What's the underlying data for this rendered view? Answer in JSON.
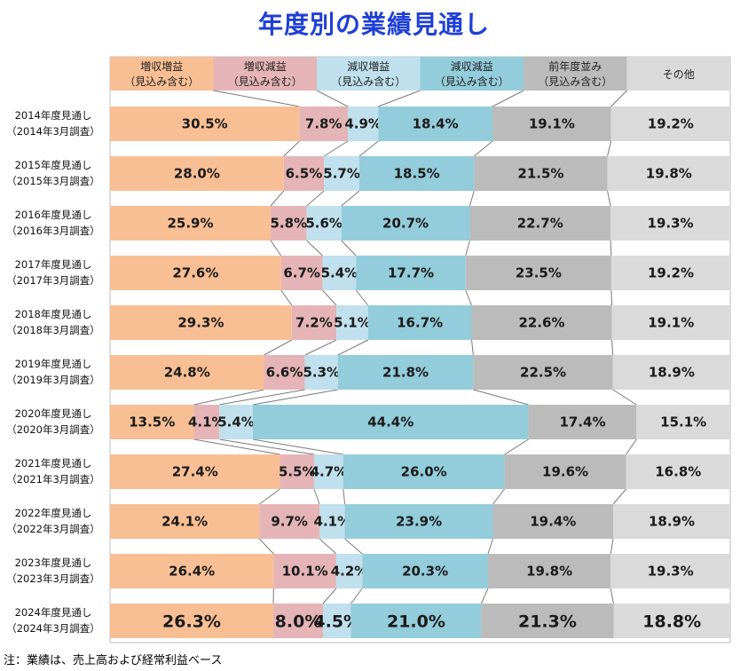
{
  "page": {
    "title": "年度別の業績見通し",
    "note": "注：業績は、売上高および経常利益ベース"
  },
  "colors": {
    "title": "#1f3fd6",
    "categories": [
      "#f9bf94",
      "#e5b4b6",
      "#bfe0ec",
      "#93ccdb",
      "#bbbbbb",
      "#dadada"
    ],
    "header_bg": [
      "#f9bf94",
      "#e5b4b6",
      "#bfe0ec",
      "#93ccdb",
      "#bbbbbb",
      "#dadada"
    ]
  },
  "chart_data": {
    "type": "bar",
    "stacked": true,
    "orientation": "horizontal",
    "title": "年度別の業績見通し",
    "legend_placement": "top",
    "categories": [
      {
        "line1": "2014年度見通し",
        "line2": "（2014年3月調査）"
      },
      {
        "line1": "2015年度見通し",
        "line2": "（2015年3月調査）"
      },
      {
        "line1": "2016年度見通し",
        "line2": "（2016年3月調査）"
      },
      {
        "line1": "2017年度見通し",
        "line2": "（2017年3月調査）"
      },
      {
        "line1": "2018年度見通し",
        "line2": "（2018年3月調査）"
      },
      {
        "line1": "2019年度見通し",
        "line2": "（2019年3月調査）"
      },
      {
        "line1": "2020年度見通し",
        "line2": "（2020年3月調査）"
      },
      {
        "line1": "2021年度見通し",
        "line2": "（2021年3月調査）"
      },
      {
        "line1": "2022年度見通し",
        "line2": "（2022年3月調査）"
      },
      {
        "line1": "2023年度見通し",
        "line2": "（2023年3月調査）"
      },
      {
        "line1": "2024年度見通し",
        "line2": "（2024年3月調査）"
      }
    ],
    "series": [
      {
        "name": "増収増益",
        "sub": "（見込み含む）",
        "values": [
          30.5,
          28.0,
          25.9,
          27.6,
          29.3,
          24.8,
          13.5,
          27.4,
          24.1,
          26.4,
          26.3
        ],
        "labels": [
          "30.5%",
          "28.0%",
          "25.9%",
          "27.6%",
          "29.3%",
          "24.8%",
          "13.5%",
          "27.4%",
          "24.1%",
          "26.4%",
          "26.3%"
        ]
      },
      {
        "name": "増収減益",
        "sub": "（見込み含む）",
        "values": [
          7.8,
          6.5,
          5.8,
          6.7,
          7.2,
          6.6,
          4.1,
          5.5,
          9.7,
          10.1,
          8.0
        ],
        "labels": [
          "7.8%",
          "6.5%",
          "5.8%",
          "6.7%",
          "7.2%",
          "6.6%",
          "4.1%",
          "5.5%",
          "9.7%",
          "10.1%",
          "8.0%"
        ]
      },
      {
        "name": "減収増益",
        "sub": "（見込み含む）",
        "values": [
          4.9,
          5.7,
          5.6,
          5.4,
          5.1,
          5.3,
          5.4,
          4.7,
          4.1,
          4.2,
          4.5
        ],
        "labels": [
          "4.9%",
          "5.7%",
          "5.6%",
          "5.4%",
          "5.1%",
          "5.3%",
          "5.4%",
          "4.7%",
          "4.1%",
          "4.2%",
          "4.5%"
        ]
      },
      {
        "name": "減収減益",
        "sub": "（見込み含む）",
        "values": [
          18.4,
          18.5,
          20.7,
          17.7,
          16.7,
          21.8,
          44.4,
          26.0,
          23.9,
          20.3,
          21.0
        ],
        "labels": [
          "18.4%",
          "18.5%",
          "20.7%",
          "17.7%",
          "16.7%",
          "21.8%",
          "44.4%",
          "26.0%",
          "23.9%",
          "20.3%",
          "21.0%"
        ]
      },
      {
        "name": "前年度並み",
        "sub": "（見込み含む）",
        "values": [
          19.1,
          21.5,
          22.7,
          23.5,
          22.6,
          22.5,
          17.4,
          19.6,
          19.4,
          19.8,
          21.3
        ],
        "labels": [
          "19.1%",
          "21.5%",
          "22.7%",
          "23.5%",
          "22.6%",
          "22.5%",
          "17.4%",
          "19.6%",
          "19.4%",
          "19.8%",
          "21.3%"
        ]
      },
      {
        "name": "その他",
        "sub": "",
        "values": [
          19.2,
          19.8,
          19.3,
          19.2,
          19.1,
          18.9,
          15.1,
          16.8,
          18.9,
          19.3,
          18.8
        ],
        "labels": [
          "19.2%",
          "19.8%",
          "19.3%",
          "19.2%",
          "19.1%",
          "18.9%",
          "15.1%",
          "16.8%",
          "18.9%",
          "19.3%",
          "18.8%"
        ]
      }
    ],
    "xlim": [
      0,
      100
    ]
  }
}
